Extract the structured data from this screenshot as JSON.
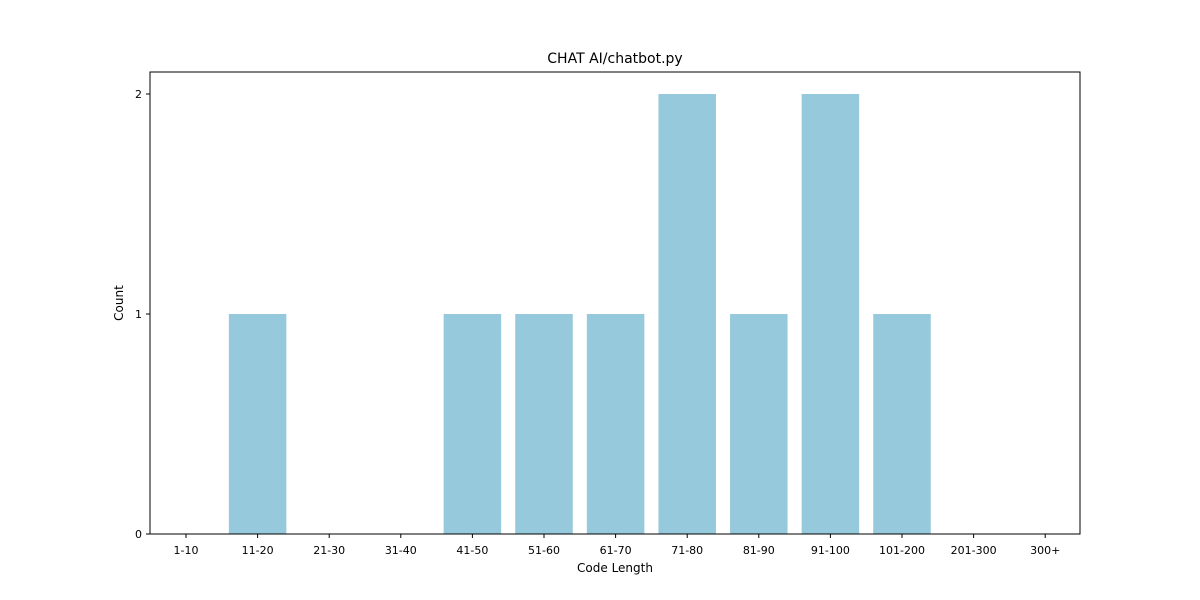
{
  "chart_data": {
    "type": "bar",
    "title": "CHAT AI/chatbot.py",
    "xlabel": "Code Length",
    "ylabel": "Count",
    "categories": [
      "1-10",
      "11-20",
      "21-30",
      "31-40",
      "41-50",
      "51-60",
      "61-70",
      "71-80",
      "81-90",
      "91-100",
      "101-200",
      "201-300",
      "300+"
    ],
    "values": [
      0,
      1,
      0,
      0,
      1,
      1,
      1,
      2,
      1,
      2,
      1,
      0,
      0
    ],
    "ylim": [
      0,
      2.1
    ],
    "yticks": [
      0,
      1,
      2
    ],
    "bar_color": "#96c9dc",
    "grid": false,
    "legend": "none"
  }
}
